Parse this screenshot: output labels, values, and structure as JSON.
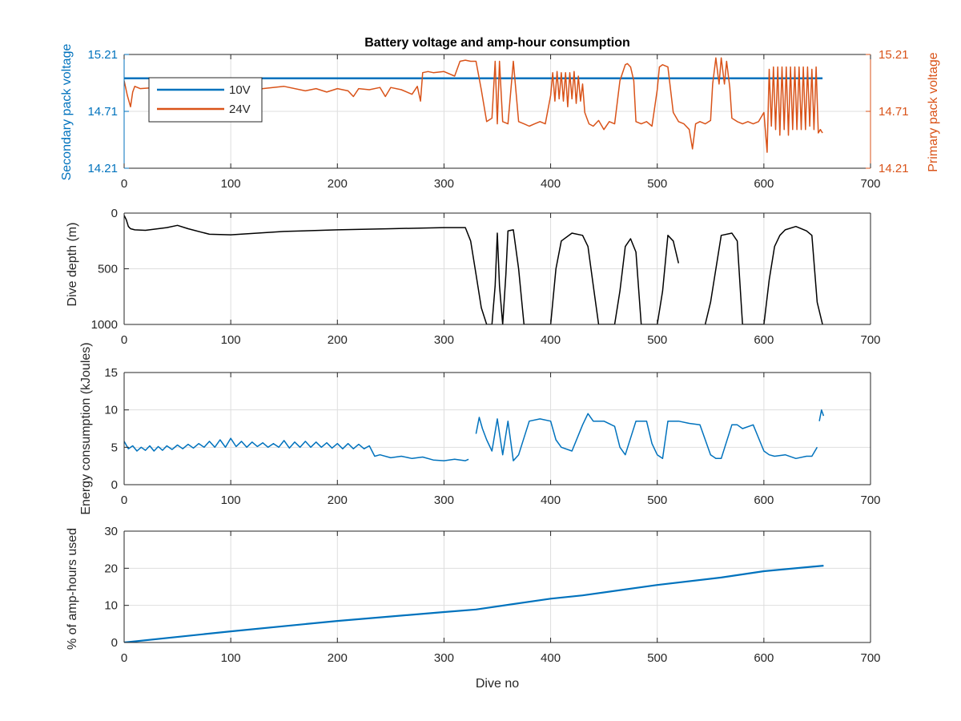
{
  "figure": {
    "title": "Battery voltage and amp-hour consumption"
  },
  "colors": {
    "blue": "#0072BD",
    "orange": "#D95319",
    "black": "#000000",
    "grid": "#dedede"
  },
  "chart_data": [
    {
      "type": "line",
      "title": "Battery voltage and amp-hour consumption",
      "xlabel": "",
      "ylabel": "Secondary pack voltage",
      "ylabel_right": "Primary pack voltage",
      "xlim": [
        0,
        700
      ],
      "ylim": [
        14.21,
        15.21
      ],
      "xticks": [
        0,
        100,
        200,
        300,
        400,
        500,
        600,
        700
      ],
      "yticks": [
        14.21,
        14.71,
        15.21
      ],
      "yticks_right": [
        14.21,
        14.71,
        15.21
      ],
      "grid": true,
      "legend": "top-left",
      "series": [
        {
          "name": "10V",
          "axis": "left",
          "color": "#0072BD",
          "x": [
            0,
            655
          ],
          "y": [
            15.0,
            15.0
          ]
        },
        {
          "name": "24V",
          "axis": "right",
          "color": "#D95319",
          "x": [
            0,
            3,
            6,
            8,
            10,
            15,
            30,
            50,
            70,
            90,
            110,
            130,
            150,
            170,
            180,
            190,
            200,
            210,
            215,
            220,
            230,
            240,
            245,
            250,
            260,
            270,
            275,
            278,
            280,
            285,
            290,
            300,
            310,
            315,
            320,
            325,
            330,
            335,
            340,
            345,
            348,
            350,
            352,
            355,
            360,
            365,
            370,
            375,
            380,
            385,
            390,
            395,
            400,
            402,
            404,
            406,
            408,
            410,
            412,
            414,
            416,
            418,
            420,
            422,
            424,
            426,
            428,
            430,
            432,
            434,
            436,
            440,
            445,
            450,
            455,
            460,
            465,
            470,
            472,
            475,
            478,
            480,
            485,
            490,
            495,
            500,
            502,
            505,
            510,
            515,
            520,
            525,
            530,
            533,
            536,
            540,
            545,
            550,
            552,
            555,
            558,
            560,
            563,
            565,
            568,
            570,
            575,
            580,
            585,
            590,
            595,
            600,
            603,
            605,
            607,
            609,
            611,
            613,
            615,
            617,
            619,
            621,
            623,
            625,
            627,
            629,
            631,
            633,
            635,
            637,
            639,
            641,
            643,
            645,
            647,
            649,
            651,
            653,
            655
          ],
          "y": [
            14.98,
            14.85,
            14.75,
            14.88,
            14.93,
            14.91,
            14.92,
            14.93,
            14.91,
            14.92,
            14.9,
            14.91,
            14.93,
            14.89,
            14.91,
            14.88,
            14.91,
            14.89,
            14.84,
            14.91,
            14.9,
            14.92,
            14.84,
            14.92,
            14.9,
            14.86,
            14.93,
            14.8,
            15.05,
            15.06,
            15.05,
            15.06,
            15.02,
            15.15,
            15.16,
            15.15,
            15.15,
            14.9,
            14.62,
            14.65,
            15.15,
            14.6,
            15.15,
            14.62,
            14.6,
            15.15,
            14.62,
            14.6,
            14.58,
            14.6,
            14.62,
            14.6,
            14.85,
            15.05,
            14.8,
            15.06,
            14.82,
            15.05,
            14.8,
            15.05,
            14.75,
            15.05,
            14.82,
            15.06,
            14.78,
            15.02,
            14.8,
            14.95,
            14.7,
            14.65,
            14.6,
            14.58,
            14.63,
            14.55,
            14.62,
            14.6,
            14.98,
            15.12,
            15.13,
            15.1,
            14.98,
            14.62,
            14.6,
            14.62,
            14.58,
            14.9,
            15.1,
            15.12,
            15.1,
            14.7,
            14.62,
            14.6,
            14.55,
            14.38,
            14.6,
            14.62,
            14.6,
            14.63,
            14.95,
            15.18,
            14.95,
            15.18,
            14.95,
            15.15,
            14.92,
            14.65,
            14.62,
            14.6,
            14.62,
            14.6,
            14.62,
            14.7,
            14.35,
            15.08,
            14.58,
            15.1,
            14.55,
            15.1,
            14.5,
            15.1,
            14.55,
            15.1,
            14.5,
            15.1,
            14.55,
            15.1,
            14.55,
            15.1,
            14.55,
            15.1,
            14.55,
            15.1,
            14.58,
            15.08,
            14.55,
            15.1,
            14.52,
            14.55,
            14.52
          ]
        }
      ]
    },
    {
      "type": "line",
      "xlabel": "",
      "ylabel": "Dive depth (m)",
      "xlim": [
        0,
        700
      ],
      "ylim": [
        0,
        1000
      ],
      "y_reversed": true,
      "xticks": [
        0,
        100,
        200,
        300,
        400,
        500,
        600,
        700
      ],
      "yticks": [
        0,
        500,
        1000
      ],
      "grid": true,
      "series": [
        {
          "color": "#000000",
          "x": [
            0,
            2,
            4,
            6,
            10,
            20,
            40,
            50,
            60,
            80,
            100,
            150,
            200,
            250,
            300,
            320,
            325,
            330,
            335,
            340,
            345,
            348,
            350,
            352,
            355,
            358,
            360,
            365,
            370,
            375,
            400,
            405,
            410,
            420,
            430,
            435,
            440,
            445,
            450,
            460,
            465,
            470,
            475,
            480,
            485,
            500,
            505,
            510,
            515,
            520,
            null,
            545,
            550,
            560,
            570,
            575,
            580,
            600,
            605,
            610,
            615,
            620,
            630,
            640,
            645,
            650,
            655
          ],
          "y": [
            20,
            60,
            120,
            140,
            150,
            155,
            130,
            110,
            140,
            190,
            195,
            165,
            150,
            140,
            130,
            130,
            250,
            550,
            850,
            1000,
            1000,
            650,
            180,
            650,
            1000,
            550,
            160,
            150,
            500,
            1000,
            1000,
            500,
            250,
            180,
            200,
            300,
            650,
            1000,
            1000,
            1000,
            700,
            300,
            230,
            350,
            1000,
            1000,
            700,
            200,
            250,
            450,
            null,
            1000,
            800,
            200,
            180,
            250,
            1000,
            1000,
            600,
            300,
            200,
            150,
            120,
            160,
            200,
            800,
            1000
          ]
        }
      ]
    },
    {
      "type": "line",
      "xlabel": "",
      "ylabel": "Energy consumption (kJoules)",
      "xlim": [
        0,
        700
      ],
      "ylim": [
        0,
        15
      ],
      "xticks": [
        0,
        100,
        200,
        300,
        400,
        500,
        600,
        700
      ],
      "yticks": [
        0,
        5,
        10,
        15
      ],
      "grid": true,
      "series": [
        {
          "color": "#0072BD",
          "x": [
            0,
            4,
            8,
            12,
            16,
            20,
            24,
            28,
            32,
            36,
            40,
            45,
            50,
            55,
            60,
            65,
            70,
            75,
            80,
            85,
            90,
            95,
            100,
            105,
            110,
            115,
            120,
            125,
            130,
            135,
            140,
            145,
            150,
            155,
            160,
            165,
            170,
            175,
            180,
            185,
            190,
            195,
            200,
            205,
            210,
            215,
            220,
            225,
            230,
            235,
            240,
            250,
            260,
            270,
            280,
            290,
            300,
            310,
            320,
            323,
            null,
            330,
            333,
            336,
            340,
            345,
            350,
            355,
            360,
            365,
            370,
            380,
            390,
            400,
            405,
            410,
            420,
            430,
            435,
            440,
            450,
            460,
            465,
            470,
            480,
            490,
            495,
            500,
            505,
            510,
            520,
            530,
            540,
            550,
            555,
            560,
            570,
            575,
            580,
            590,
            600,
            605,
            610,
            620,
            630,
            640,
            645,
            650,
            null,
            652,
            654,
            656
          ],
          "y": [
            5.8,
            4.8,
            5.2,
            4.5,
            5.0,
            4.6,
            5.2,
            4.5,
            5.1,
            4.6,
            5.2,
            4.7,
            5.3,
            4.8,
            5.4,
            4.9,
            5.5,
            5.0,
            5.8,
            5.0,
            6.0,
            5.0,
            6.2,
            5.1,
            5.8,
            5.0,
            5.7,
            5.1,
            5.6,
            5.0,
            5.5,
            5.0,
            5.9,
            4.9,
            5.7,
            5.0,
            5.8,
            5.0,
            5.7,
            5.0,
            5.6,
            4.9,
            5.5,
            4.8,
            5.5,
            4.8,
            5.4,
            4.8,
            5.2,
            3.8,
            4.0,
            3.6,
            3.8,
            3.5,
            3.7,
            3.3,
            3.2,
            3.4,
            3.2,
            3.4,
            null,
            6.8,
            9.0,
            7.5,
            6.0,
            4.5,
            8.8,
            4.0,
            8.5,
            3.2,
            4.0,
            8.5,
            8.8,
            8.5,
            6.0,
            5.0,
            4.5,
            8.0,
            9.5,
            8.5,
            8.5,
            7.8,
            5.0,
            4.0,
            8.5,
            8.5,
            5.5,
            4.0,
            3.5,
            8.5,
            8.5,
            8.2,
            8.0,
            4.0,
            3.5,
            3.5,
            8.0,
            8.0,
            7.5,
            8.0,
            4.5,
            4.0,
            3.8,
            4.0,
            3.5,
            3.8,
            3.8,
            5.0,
            null,
            8.5,
            10.0,
            9.2
          ]
        }
      ]
    },
    {
      "type": "line",
      "xlabel": "Dive no",
      "ylabel": "% of amp-hours used",
      "xlim": [
        0,
        700
      ],
      "ylim": [
        0,
        30
      ],
      "xticks": [
        0,
        100,
        200,
        300,
        400,
        500,
        600,
        700
      ],
      "yticks": [
        0,
        10,
        20,
        30
      ],
      "grid": true,
      "series": [
        {
          "color": "#0072BD",
          "x": [
            0,
            100,
            200,
            300,
            330,
            400,
            430,
            500,
            560,
            600,
            656
          ],
          "y": [
            0,
            3,
            5.8,
            8.2,
            8.9,
            11.8,
            12.7,
            15.5,
            17.5,
            19.2,
            20.7
          ]
        }
      ]
    }
  ]
}
